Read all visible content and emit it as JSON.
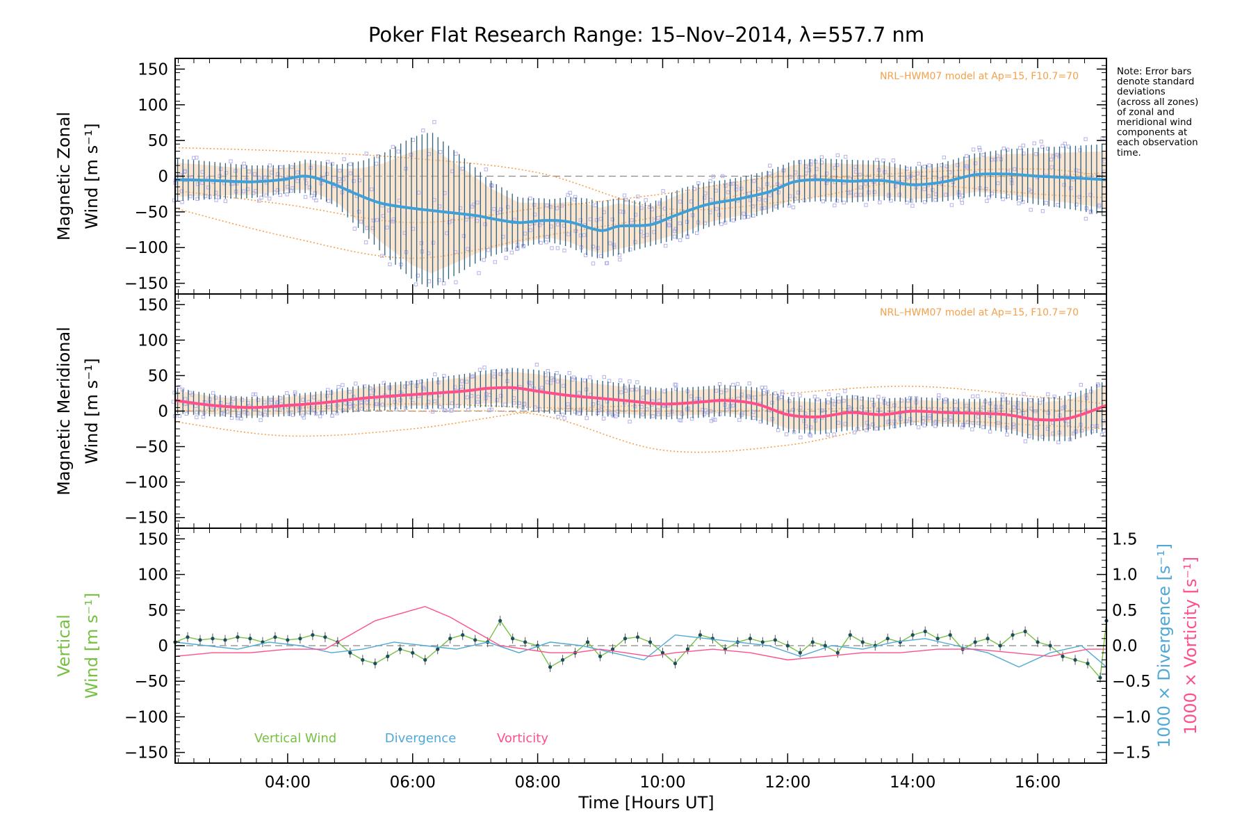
{
  "title": "Poker Flat Research Range: 15–Nov–2014, λ=557.7 nm",
  "side_note": [
    "Note: Error bars",
    "denote standard",
    "deviations",
    "(across all zones)",
    "of zonal and",
    "meridional wind",
    "components at",
    "each observation",
    "time."
  ],
  "xlabel": "Time [Hours UT]",
  "x_ticks": [
    {
      "v": 4,
      "label": "04:00"
    },
    {
      "v": 6,
      "label": "06:00"
    },
    {
      "v": 8,
      "label": "08:00"
    },
    {
      "v": 10,
      "label": "10:00"
    },
    {
      "v": 12,
      "label": "12:00"
    },
    {
      "v": 14,
      "label": "14:00"
    },
    {
      "v": 16,
      "label": "16:00"
    }
  ],
  "y_ticks": [
    {
      "v": 150,
      "label": "150"
    },
    {
      "v": 100,
      "label": "100"
    },
    {
      "v": 50,
      "label": "50"
    },
    {
      "v": 0,
      "label": "0"
    },
    {
      "v": -50,
      "label": "−50"
    },
    {
      "v": -100,
      "label": "−100"
    },
    {
      "v": -150,
      "label": "−150"
    }
  ],
  "y2_ticks": [
    {
      "v": 1.5,
      "label": "1.5"
    },
    {
      "v": 1.0,
      "label": "1.0"
    },
    {
      "v": 0.5,
      "label": "0.5"
    },
    {
      "v": 0.0,
      "label": "0.0"
    },
    {
      "v": -0.5,
      "label": "−0.5"
    },
    {
      "v": -1.0,
      "label": "−1.0"
    },
    {
      "v": -1.5,
      "label": "−1.5"
    }
  ],
  "model_label": "NRL–HWM07 model at Ap=15, F10.7=70",
  "colors": {
    "axis": "#000000",
    "model": "#f5a04a",
    "zonal_mean": "#3fa0d8",
    "meridional_mean": "#ff4f8b",
    "vertical": "#77c043",
    "divergence": "#4fa8d8",
    "vorticity": "#ff4f8b",
    "errorbar": "#2f5f7a",
    "zone_points": "#b4b2ea"
  },
  "chart_data": [
    {
      "type": "line",
      "panel": "zonal",
      "ylabel_lines": [
        "Magnetic Zonal",
        "Wind [m s⁻¹]"
      ],
      "xlim": [
        2.2,
        17.1
      ],
      "ylim": [
        -165,
        165
      ],
      "series": [
        {
          "name": "",
          "role": "mean",
          "x": [
            2.2,
            2.8,
            3.4,
            3.9,
            4.3,
            4.7,
            5.1,
            5.5,
            6.0,
            6.5,
            7.0,
            7.3,
            7.7,
            8.1,
            8.5,
            9.0,
            9.3,
            9.8,
            10.2,
            10.7,
            11.2,
            11.7,
            12.1,
            12.5,
            13.0,
            13.5,
            14.0,
            14.5,
            15.0,
            15.5,
            16.0,
            16.5,
            17.1
          ],
          "y": [
            -5,
            -6,
            -8,
            -5,
            0,
            -10,
            -25,
            -38,
            -45,
            -50,
            -55,
            -60,
            -65,
            -62,
            -64,
            -76,
            -70,
            -68,
            -55,
            -40,
            -32,
            -22,
            -8,
            -5,
            -7,
            -6,
            -12,
            -8,
            2,
            3,
            0,
            -2,
            -5
          ]
        },
        {
          "name": "",
          "role": "error_bar_half_width",
          "x": [
            2.2,
            3.0,
            4.0,
            4.8,
            5.2,
            5.6,
            6.0,
            6.3,
            6.8,
            7.2,
            7.7,
            8.2,
            8.8,
            9.3,
            9.8,
            10.3,
            11.0,
            11.8,
            12.3,
            13.0,
            14.0,
            15.0,
            16.0,
            16.6,
            17.1
          ],
          "y": [
            30,
            25,
            20,
            30,
            50,
            75,
            100,
            110,
            80,
            55,
            35,
            30,
            40,
            40,
            30,
            35,
            30,
            30,
            30,
            30,
            25,
            30,
            40,
            45,
            50
          ]
        },
        {
          "name": "",
          "role": "model",
          "x": [
            2.2,
            4,
            6,
            8,
            10,
            12,
            14,
            16,
            17.1
          ],
          "y": [
            40,
            35,
            25,
            5,
            -45,
            -35,
            -5,
            0,
            5
          ]
        },
        {
          "name": "",
          "role": "model",
          "x": [
            2.2,
            4,
            6,
            8,
            10,
            12,
            14,
            16,
            17.1
          ],
          "y": [
            -45,
            -85,
            -115,
            -85,
            -55,
            -10,
            5,
            10,
            0
          ]
        },
        {
          "name": "",
          "role": "model",
          "x": [
            2.2,
            4,
            6,
            8,
            10,
            12,
            14,
            16,
            17.1
          ],
          "y": [
            -20,
            -40,
            -65,
            -45,
            -25,
            0,
            -10,
            -25,
            -30
          ]
        }
      ]
    },
    {
      "type": "line",
      "panel": "meridional",
      "ylabel_lines": [
        "Magnetic Meridional",
        "Wind [m s⁻¹]"
      ],
      "xlim": [
        2.2,
        17.1
      ],
      "ylim": [
        -165,
        165
      ],
      "series": [
        {
          "name": "",
          "role": "mean",
          "x": [
            2.2,
            2.8,
            3.4,
            4.0,
            4.6,
            5.2,
            5.8,
            6.3,
            6.8,
            7.2,
            7.6,
            8.0,
            8.5,
            9.0,
            9.5,
            10.0,
            10.5,
            11.0,
            11.5,
            12.0,
            12.5,
            13.0,
            13.5,
            14.0,
            14.5,
            15.0,
            15.5,
            16.0,
            16.5,
            17.1
          ],
          "y": [
            15,
            8,
            5,
            8,
            12,
            18,
            22,
            25,
            28,
            32,
            33,
            28,
            22,
            18,
            14,
            10,
            12,
            15,
            10,
            -5,
            -8,
            -2,
            -5,
            0,
            -2,
            -3,
            -5,
            -12,
            -10,
            8
          ]
        },
        {
          "name": "",
          "role": "error_bar_half_width",
          "x": [
            2.2,
            3.0,
            4.0,
            5.0,
            6.0,
            7.0,
            8.0,
            9.0,
            10.0,
            11.0,
            12.0,
            13.0,
            14.0,
            15.0,
            16.0,
            17.1
          ],
          "y": [
            18,
            15,
            15,
            18,
            20,
            25,
            30,
            25,
            22,
            22,
            25,
            25,
            20,
            20,
            30,
            35
          ]
        },
        {
          "name": "",
          "role": "model",
          "x": [
            2.2,
            4,
            6,
            8,
            10,
            12,
            14,
            16,
            17.1
          ],
          "y": [
            -15,
            -35,
            -25,
            0,
            10,
            25,
            35,
            20,
            10
          ]
        },
        {
          "name": "",
          "role": "model",
          "x": [
            2.2,
            4,
            6,
            8,
            10,
            12,
            14,
            16,
            17.1
          ],
          "y": [
            10,
            5,
            0,
            -5,
            -55,
            -48,
            -15,
            -20,
            -25
          ]
        },
        {
          "name": "",
          "role": "model",
          "x": [
            2.2,
            4,
            6,
            8,
            10,
            12,
            14,
            16,
            17.1
          ],
          "y": [
            0,
            5,
            10,
            5,
            0,
            2,
            5,
            2,
            0
          ]
        }
      ]
    },
    {
      "type": "line",
      "panel": "vertical",
      "ylabel_lines": [
        "Vertical",
        "Wind [m s⁻¹]"
      ],
      "y2label_parts": [
        "1000 × Divergence [s⁻¹]",
        "1000 × Vorticity [s⁻¹]"
      ],
      "xlim": [
        2.2,
        17.1
      ],
      "ylim": [
        -165,
        165
      ],
      "y2lim": [
        -1.65,
        1.65
      ],
      "legend": [
        "Vertical Wind",
        "Divergence",
        "Vorticity"
      ],
      "series": [
        {
          "name": "Vertical Wind",
          "axis": "left",
          "x": [
            2.2,
            2.4,
            2.6,
            2.8,
            3.0,
            3.2,
            3.4,
            3.6,
            3.8,
            4.0,
            4.2,
            4.4,
            4.6,
            4.8,
            5.0,
            5.2,
            5.4,
            5.6,
            5.8,
            6.0,
            6.2,
            6.4,
            6.6,
            6.8,
            7.0,
            7.2,
            7.4,
            7.6,
            7.8,
            8.0,
            8.2,
            8.4,
            8.6,
            8.8,
            9.0,
            9.2,
            9.4,
            9.6,
            9.8,
            10.0,
            10.2,
            10.4,
            10.6,
            10.8,
            11.0,
            11.2,
            11.4,
            11.6,
            11.8,
            12.0,
            12.2,
            12.4,
            12.6,
            12.8,
            13.0,
            13.2,
            13.4,
            13.6,
            13.8,
            14.0,
            14.2,
            14.4,
            14.6,
            14.8,
            15.0,
            15.2,
            15.4,
            15.6,
            15.8,
            16.0,
            16.2,
            16.4,
            16.6,
            16.8,
            17.0,
            17.1
          ],
          "y": [
            5,
            12,
            8,
            10,
            8,
            12,
            10,
            5,
            12,
            8,
            10,
            15,
            12,
            5,
            -10,
            -20,
            -25,
            -15,
            -5,
            -10,
            -20,
            -5,
            10,
            15,
            8,
            5,
            35,
            10,
            5,
            0,
            -30,
            -20,
            -10,
            5,
            -15,
            -5,
            10,
            12,
            5,
            -10,
            -25,
            -5,
            15,
            10,
            -5,
            5,
            10,
            5,
            8,
            0,
            -10,
            5,
            0,
            -10,
            15,
            5,
            0,
            10,
            5,
            15,
            20,
            10,
            15,
            -5,
            5,
            10,
            0,
            15,
            20,
            5,
            0,
            -15,
            -20,
            -25,
            -45,
            35
          ]
        },
        {
          "name": "Divergence",
          "axis": "right",
          "x": [
            2.2,
            2.7,
            3.2,
            3.7,
            4.2,
            4.7,
            5.2,
            5.7,
            6.2,
            6.7,
            7.2,
            7.7,
            8.2,
            8.7,
            9.2,
            9.7,
            10.2,
            10.7,
            11.2,
            11.7,
            12.2,
            12.7,
            13.2,
            13.7,
            14.2,
            14.7,
            15.2,
            15.7,
            16.2,
            16.7,
            17.1
          ],
          "y": [
            0.05,
            0.0,
            -0.05,
            0.05,
            0.0,
            -0.1,
            -0.05,
            0.05,
            0.0,
            -0.05,
            0.05,
            -0.1,
            0.05,
            0.0,
            -0.1,
            -0.2,
            0.15,
            0.1,
            0.05,
            0.0,
            -0.15,
            0.0,
            -0.05,
            0.05,
            0.1,
            0.0,
            -0.1,
            -0.3,
            -0.1,
            0.0,
            -0.3
          ]
        },
        {
          "name": "Vorticity",
          "axis": "right",
          "x": [
            2.2,
            2.8,
            3.4,
            4.0,
            4.6,
            5.0,
            5.4,
            5.8,
            6.0,
            6.2,
            6.6,
            7.0,
            7.4,
            7.8,
            8.2,
            8.6,
            9.0,
            9.4,
            9.8,
            10.2,
            10.8,
            11.4,
            12.0,
            12.6,
            13.2,
            13.8,
            14.4,
            15.0,
            15.6,
            16.2,
            16.8,
            17.1
          ],
          "y": [
            -0.15,
            -0.1,
            -0.1,
            -0.05,
            -0.05,
            0.15,
            0.35,
            0.45,
            0.5,
            0.55,
            0.4,
            0.2,
            0.0,
            -0.05,
            -0.1,
            -0.1,
            -0.05,
            -0.1,
            -0.15,
            -0.1,
            -0.05,
            -0.1,
            -0.2,
            -0.15,
            -0.1,
            -0.1,
            -0.05,
            -0.05,
            -0.1,
            -0.15,
            -0.05,
            -0.05
          ]
        }
      ]
    }
  ]
}
